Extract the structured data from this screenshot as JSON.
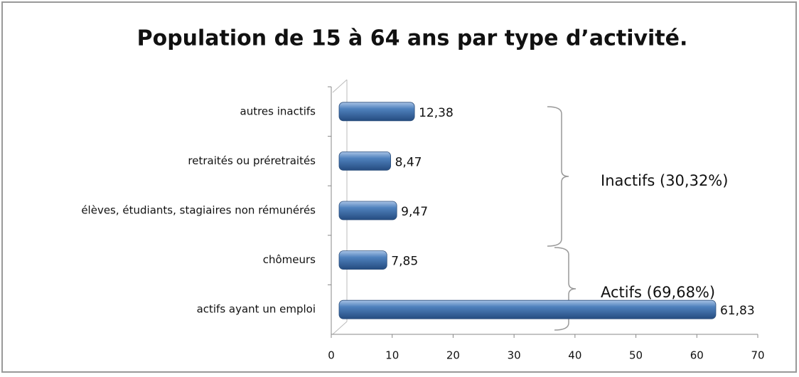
{
  "chart_data": {
    "type": "bar",
    "orientation": "horizontal",
    "title": "Population de 15 à 64 ans par type d’activité.",
    "categories": [
      "autres inactifs",
      "retraités ou préretraités",
      "élèves, étudiants, stagiaires non rémunérés",
      "chômeurs",
      "actifs ayant un emploi"
    ],
    "values": [
      12.38,
      8.47,
      9.47,
      7.85,
      61.83
    ],
    "value_labels": [
      "12,38",
      "8,47",
      "9,47",
      "7,85",
      "61,83"
    ],
    "color": "#4f81bd",
    "xlim": [
      0,
      70
    ],
    "xticks": [
      0,
      10,
      20,
      30,
      40,
      50,
      60,
      70
    ],
    "annotations": [
      "Inactifs (30,32%)",
      "Actifs (69,68%)"
    ]
  }
}
